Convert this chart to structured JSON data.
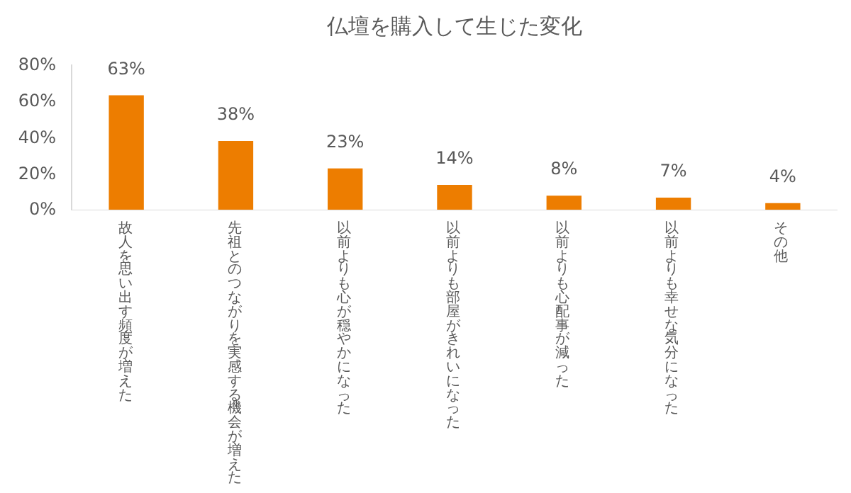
{
  "chart_data": {
    "type": "bar",
    "title": "仏壇を購入して生じた変化",
    "categories": [
      "故人を思い出す頻度が増えた",
      "先祖とのつながりを実感する機会が増えた",
      "以前よりも心が穏やかになった",
      "以前よりも部屋がきれいになった",
      "以前よりも心配事が減った",
      "以前よりも幸せな気分になった",
      "その他"
    ],
    "values": [
      63,
      38,
      23,
      14,
      8,
      7,
      4
    ],
    "value_labels": [
      "63%",
      "38%",
      "23%",
      "14%",
      "8%",
      "7%",
      "4%"
    ],
    "color": "#ed7d00",
    "ylim": [
      0,
      80
    ],
    "yticks": [
      {
        "value": 0,
        "label": "0%"
      },
      {
        "value": 20,
        "label": "20%"
      },
      {
        "value": 40,
        "label": "40%"
      },
      {
        "value": 60,
        "label": "60%"
      },
      {
        "value": 80,
        "label": "80%"
      }
    ],
    "grid": false
  }
}
